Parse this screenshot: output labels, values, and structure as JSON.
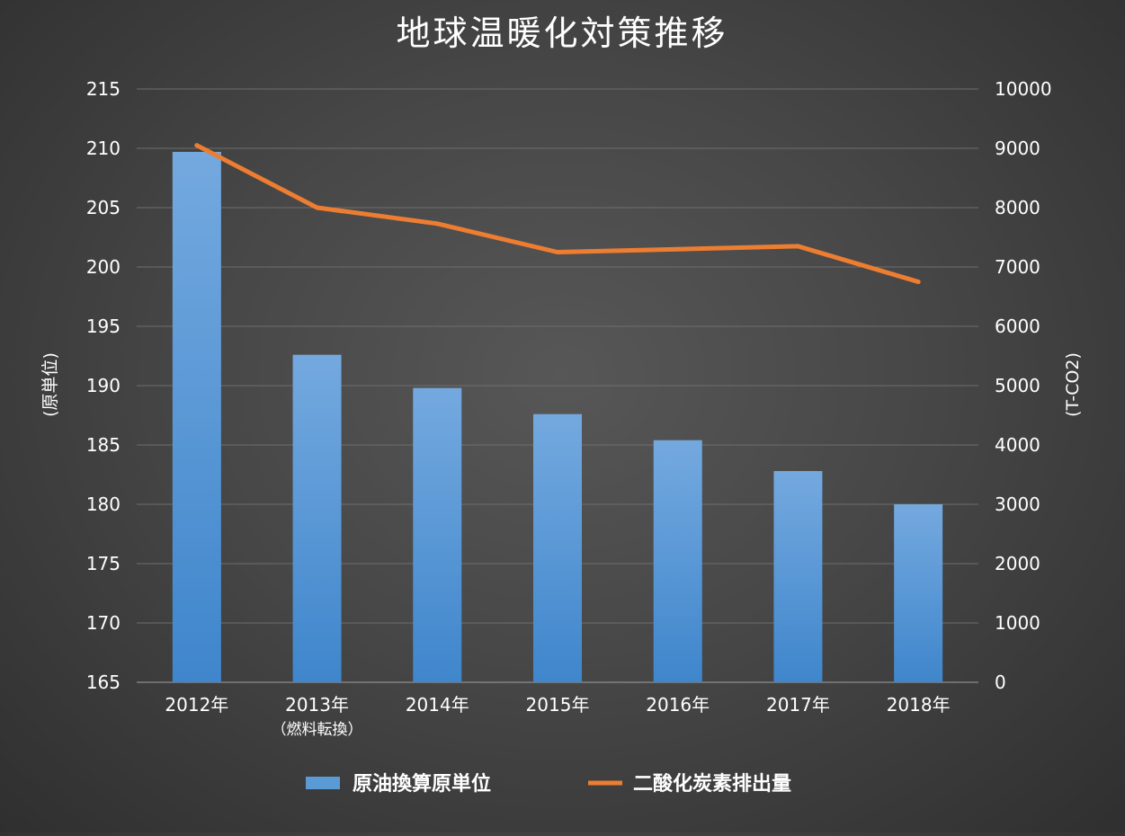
{
  "chart_data": {
    "type": "bar",
    "title": "地球温暖化対策推移",
    "categories": [
      "2012年",
      "2013年",
      "2014年",
      "2015年",
      "2016年",
      "2017年",
      "2018年"
    ],
    "category_sublabels": [
      "",
      "（燃料転換）",
      "",
      "",
      "",
      "",
      ""
    ],
    "y_left": {
      "label": "(原単位)",
      "ylim": [
        165,
        215
      ],
      "ticks": [
        165,
        170,
        175,
        180,
        185,
        190,
        195,
        200,
        205,
        210,
        215
      ]
    },
    "y_right": {
      "label": "(T-CO2)",
      "ylim": [
        0,
        10000
      ],
      "ticks": [
        0,
        1000,
        2000,
        3000,
        4000,
        5000,
        6000,
        7000,
        8000,
        9000,
        10000
      ]
    },
    "grid": true,
    "legend_position": "bottom",
    "series": [
      {
        "name": "原油換算原単位",
        "type": "bar",
        "axis": "left",
        "color": "#5b9bd5",
        "values": [
          209.7,
          192.6,
          189.8,
          187.6,
          185.4,
          182.8,
          180.0
        ]
      },
      {
        "name": "二酸化炭素排出量",
        "type": "line",
        "axis": "right",
        "color": "#ed7d31",
        "values": [
          9050,
          8000,
          7730,
          7250,
          7300,
          7350,
          6750
        ]
      }
    ]
  }
}
